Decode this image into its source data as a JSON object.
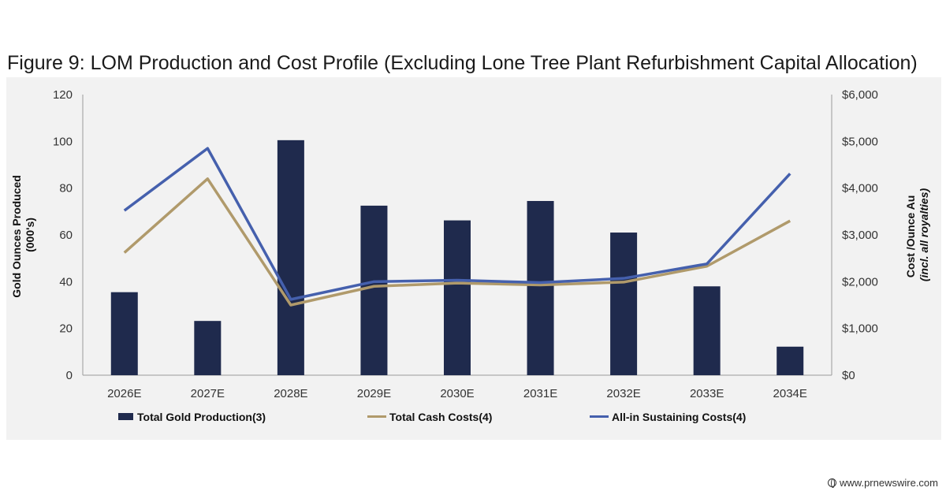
{
  "title": "Figure 9: LOM Production and Cost Profile (Excluding Lone Tree Plant Refurbishment Capital Allocation)",
  "watermark": "www.prnewswire.com",
  "chart_data": {
    "type": "bar",
    "categories": [
      "2026E",
      "2027E",
      "2028E",
      "2029E",
      "2030E",
      "2031E",
      "2032E",
      "2033E",
      "2034E"
    ],
    "y_left": {
      "label_line1": "Gold Ounces Produced",
      "label_line2": "(000's)",
      "ylim": [
        0,
        120
      ],
      "ticks": [
        "0",
        "20",
        "40",
        "60",
        "80",
        "100",
        "120"
      ]
    },
    "y_right": {
      "label_line1": "Cost /Ounce Au",
      "label_line2": "(incl. all royalties)",
      "ylim": [
        0,
        6000
      ],
      "ticks": [
        "$0",
        "$1,000",
        "$2,000",
        "$3,000",
        "$4,000",
        "$5,000",
        "$6,000"
      ]
    },
    "series": [
      {
        "name": "Total Gold Production(3)",
        "type": "bar",
        "axis": "left",
        "color": "#1f2a4d",
        "values": [
          35.5,
          23.2,
          100.5,
          72.5,
          66.2,
          74.5,
          61.0,
          38.0,
          12.2
        ]
      },
      {
        "name": "Total Cash Costs(4)",
        "type": "line",
        "axis": "right",
        "color": "#b09a6b",
        "values": [
          2620,
          4200,
          1500,
          1900,
          1970,
          1930,
          1990,
          2330,
          3300
        ]
      },
      {
        "name": "All-in Sustaining Costs(4)",
        "type": "line",
        "axis": "right",
        "color": "#4560ad",
        "values": [
          3520,
          4850,
          1620,
          2000,
          2030,
          1980,
          2070,
          2380,
          4310
        ]
      }
    ],
    "legend_position": "bottom",
    "grid": false
  }
}
